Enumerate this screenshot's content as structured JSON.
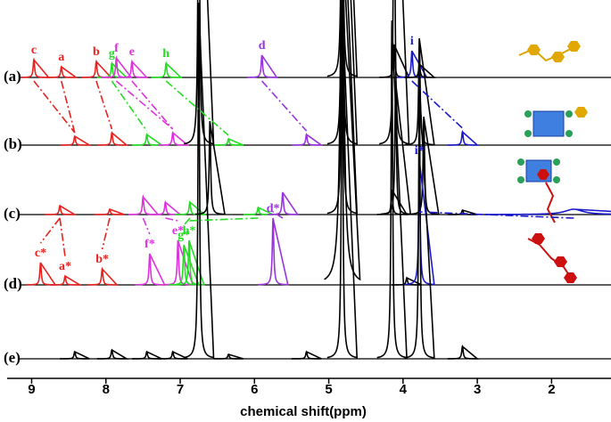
{
  "chart_data": {
    "type": "nmr",
    "xlabel": "chemical shift(ppm)",
    "xlim": [
      9.33,
      1.2
    ],
    "xticks": [
      9,
      8,
      7,
      6,
      5,
      4,
      3,
      2
    ],
    "series": [
      {
        "name": "(a)",
        "peaks": [
          {
            "x": 8.97,
            "h": 20,
            "color": "#e8221e",
            "label": "c"
          },
          {
            "x": 8.6,
            "h": 12,
            "color": "#e8221e",
            "label": "a"
          },
          {
            "x": 8.13,
            "h": 18,
            "color": "#e8221e",
            "label": "b"
          },
          {
            "x": 7.92,
            "h": 16,
            "color": "#22dd22",
            "label": "g"
          },
          {
            "x": 7.86,
            "h": 22,
            "color": "#dd33dd",
            "label": "f"
          },
          {
            "x": 7.65,
            "h": 18,
            "color": "#dd33dd",
            "label": "e"
          },
          {
            "x": 7.19,
            "h": 16,
            "color": "#22dd22",
            "label": "h"
          },
          {
            "x": 5.9,
            "h": 25,
            "color": "#9933dd",
            "label": "d"
          },
          {
            "x": 4.82,
            "h": 400,
            "color": "#000000"
          },
          {
            "x": 4.12,
            "h": 37,
            "color": "#000000"
          },
          {
            "x": 3.88,
            "h": 30,
            "color": "#1a1acc",
            "label": "i"
          },
          {
            "x": 3.78,
            "h": 15,
            "color": "#000000"
          }
        ]
      },
      {
        "name": "(b)",
        "peaks": [
          {
            "x": 8.42,
            "h": 10,
            "color": "#e8221e"
          },
          {
            "x": 7.92,
            "h": 14,
            "color": "#e8221e"
          },
          {
            "x": 7.45,
            "h": 12,
            "color": "#22dd22"
          },
          {
            "x": 7.1,
            "h": 14,
            "color": "#dd33dd"
          },
          {
            "x": 6.75,
            "h": 400,
            "color": "#000000"
          },
          {
            "x": 6.35,
            "h": 7,
            "color": "#22dd22"
          },
          {
            "x": 5.3,
            "h": 12,
            "color": "#9933dd"
          },
          {
            "x": 4.82,
            "h": 400,
            "color": "#000000"
          },
          {
            "x": 4.12,
            "h": 400,
            "color": "#000000"
          },
          {
            "x": 3.78,
            "h": 120,
            "color": "#000000"
          },
          {
            "x": 3.2,
            "h": 15,
            "color": "#1a1acc"
          }
        ]
      },
      {
        "name": "(c)",
        "peaks": [
          {
            "x": 8.62,
            "h": 10,
            "color": "#e8221e"
          },
          {
            "x": 7.95,
            "h": 6,
            "color": "#e8221e"
          },
          {
            "x": 7.5,
            "h": 20,
            "color": "#dd33dd"
          },
          {
            "x": 7.2,
            "h": 14,
            "color": "#dd33dd"
          },
          {
            "x": 6.87,
            "h": 14,
            "color": "#22dd22"
          },
          {
            "x": 6.6,
            "h": 105,
            "color": "#000000"
          },
          {
            "x": 5.95,
            "h": 8,
            "color": "#22dd22"
          },
          {
            "x": 5.62,
            "h": 25,
            "color": "#9933dd"
          },
          {
            "x": 4.82,
            "h": 400,
            "color": "#000000"
          },
          {
            "x": 4.15,
            "h": 28,
            "color": "#000000"
          },
          {
            "x": 4.1,
            "h": 150,
            "color": "#000000"
          },
          {
            "x": 3.72,
            "h": 110,
            "color": "#000000"
          },
          {
            "x": 3.2,
            "h": 5,
            "color": "#000000"
          },
          {
            "x": 1.7,
            "h": 6,
            "color": "#1a1acc",
            "w": 0.15
          }
        ]
      },
      {
        "name": "(d)",
        "peaks": [
          {
            "x": 8.88,
            "h": 25,
            "color": "#e8221e",
            "label": "c*"
          },
          {
            "x": 8.55,
            "h": 10,
            "color": "#e8221e",
            "label": "a*"
          },
          {
            "x": 8.05,
            "h": 18,
            "color": "#e8221e",
            "label": "b*"
          },
          {
            "x": 7.41,
            "h": 35,
            "color": "#dd33dd",
            "label": "f*"
          },
          {
            "x": 7.03,
            "h": 50,
            "color": "#dd33dd",
            "label": "e*"
          },
          {
            "x": 6.95,
            "h": 45,
            "color": "#22dd22",
            "label": "g*"
          },
          {
            "x": 6.88,
            "h": 50,
            "color": "#22dd22",
            "label": "h*"
          },
          {
            "x": 5.75,
            "h": 75,
            "color": "#9933dd",
            "label": "d*"
          },
          {
            "x": 4.82,
            "h": 400,
            "color": "#000000",
            "w": 0.03
          },
          {
            "x": 3.95,
            "h": 8,
            "color": "#000000"
          },
          {
            "x": 3.78,
            "h": 140,
            "color": "#1a1acc",
            "label": "i*"
          }
        ]
      },
      {
        "name": "(e)",
        "peaks": [
          {
            "x": 8.42,
            "h": 8,
            "color": "#000000"
          },
          {
            "x": 7.92,
            "h": 10,
            "color": "#000000"
          },
          {
            "x": 7.45,
            "h": 8,
            "color": "#000000"
          },
          {
            "x": 7.1,
            "h": 8,
            "color": "#000000"
          },
          {
            "x": 6.75,
            "h": 400,
            "color": "#000000"
          },
          {
            "x": 6.35,
            "h": 5,
            "color": "#000000"
          },
          {
            "x": 5.3,
            "h": 8,
            "color": "#000000"
          },
          {
            "x": 4.82,
            "h": 400,
            "color": "#000000"
          },
          {
            "x": 4.15,
            "h": 380,
            "color": "#000000"
          },
          {
            "x": 3.78,
            "h": 310,
            "color": "#000000"
          },
          {
            "x": 3.2,
            "h": 14,
            "color": "#000000"
          }
        ]
      }
    ]
  }
}
